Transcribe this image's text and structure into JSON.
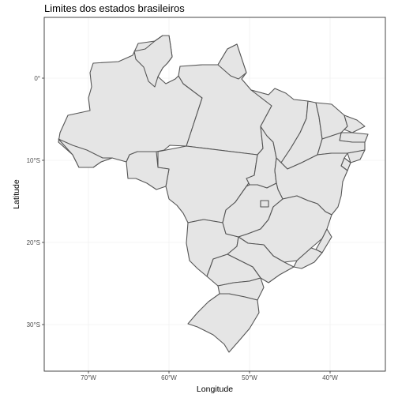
{
  "title": "Limites dos estados brasileiros",
  "x_axis": {
    "label": "Longitude",
    "ticks": [
      {
        "lon": -70,
        "label": "70°W"
      },
      {
        "lon": -60,
        "label": "60°W"
      },
      {
        "lon": -50,
        "label": "50°W"
      },
      {
        "lon": -40,
        "label": "40°W"
      }
    ]
  },
  "y_axis": {
    "label": "Latitude",
    "ticks": [
      {
        "lat": 0,
        "label": "0°"
      },
      {
        "lat": -10,
        "label": "10°S"
      },
      {
        "lat": -20,
        "label": "20°S"
      },
      {
        "lat": -30,
        "label": "30°S"
      }
    ]
  },
  "colors": {
    "state_fill": "#e5e5e5",
    "state_border": "#555555",
    "panel_border": "#333333",
    "grid": "#f0f0f0"
  }
}
